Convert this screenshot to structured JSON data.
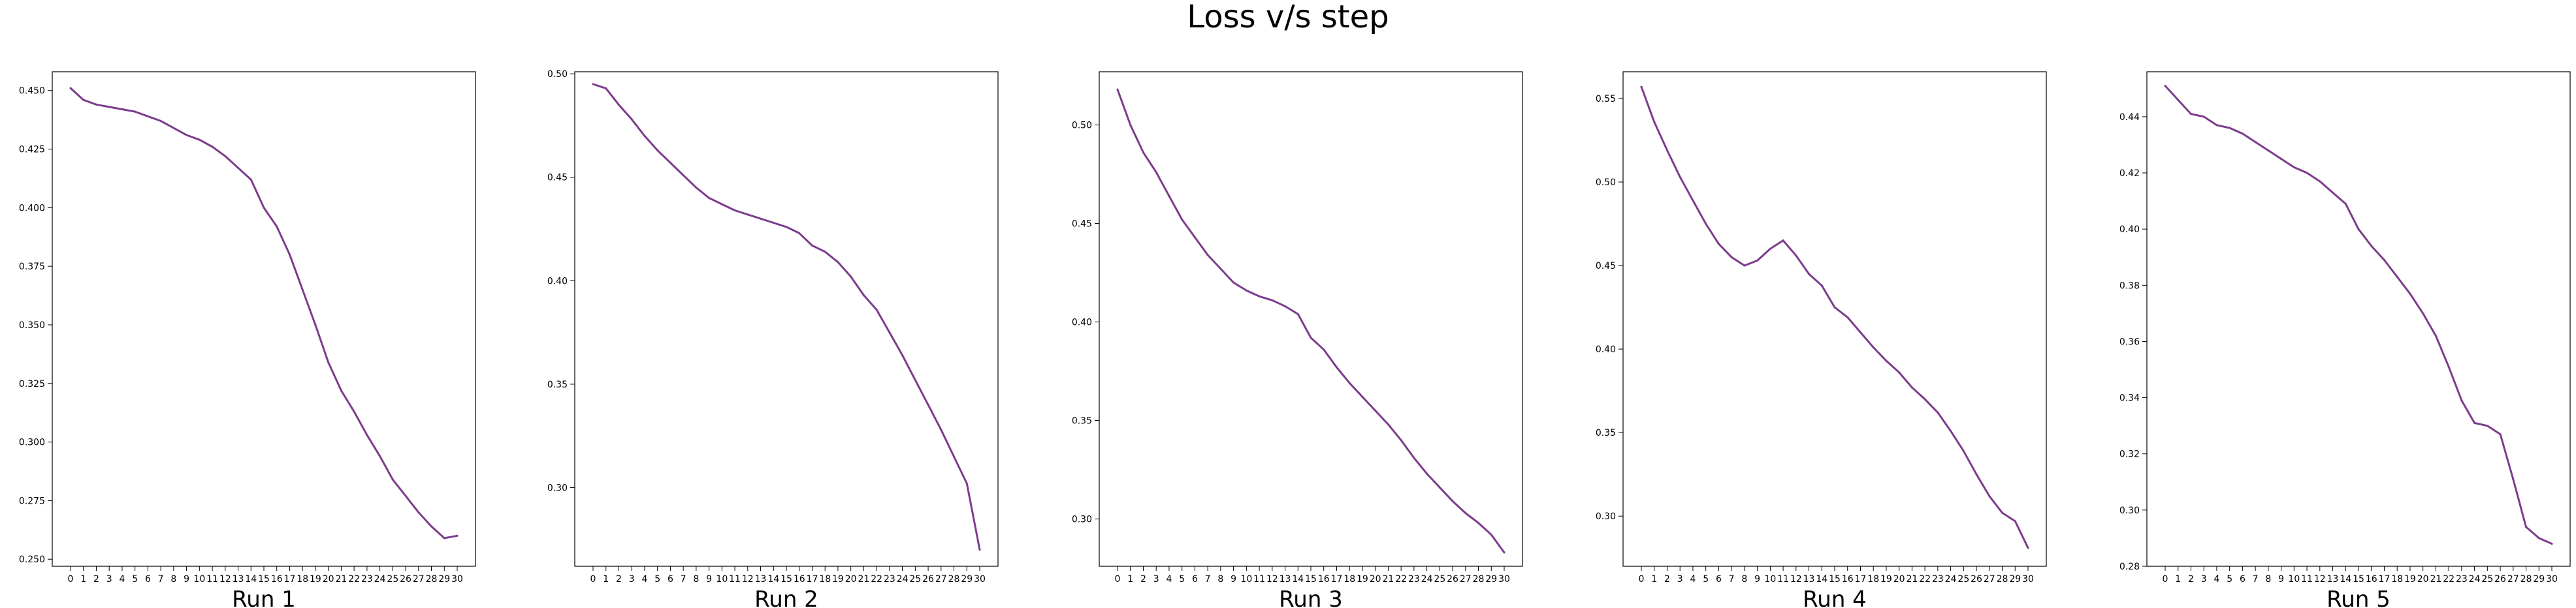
{
  "figure": {
    "title": "Loss v/s step",
    "line_color": "#7d3c8c"
  },
  "chart_data": [
    {
      "type": "line",
      "title": "",
      "xlabel": "Run 1",
      "ylabel": "",
      "x": [
        0,
        1,
        2,
        3,
        4,
        5,
        6,
        7,
        8,
        9,
        10,
        11,
        12,
        13,
        14,
        15,
        16,
        17,
        18,
        19,
        20,
        21,
        22,
        23,
        24,
        25,
        26,
        27,
        28,
        29,
        30
      ],
      "series": [
        {
          "values": [
            0.451,
            0.446,
            0.444,
            0.443,
            0.442,
            0.441,
            0.439,
            0.437,
            0.434,
            0.431,
            0.429,
            0.426,
            0.422,
            0.417,
            0.412,
            0.4,
            0.392,
            0.38,
            0.365,
            0.35,
            0.334,
            0.322,
            0.313,
            0.303,
            0.294,
            0.284,
            0.277,
            0.27,
            0.264,
            0.259,
            0.26
          ]
        }
      ],
      "ylim": [
        0.247,
        0.458
      ],
      "yticks": [
        0.25,
        0.275,
        0.3,
        0.325,
        0.35,
        0.375,
        0.4,
        0.425,
        0.45
      ],
      "ytick_labels": [
        "0.250",
        "0.275",
        "0.300",
        "0.325",
        "0.350",
        "0.375",
        "0.400",
        "0.425",
        "0.450"
      ],
      "grid": false,
      "legend": "none"
    },
    {
      "type": "line",
      "title": "",
      "xlabel": "Run 2",
      "ylabel": "",
      "x": [
        0,
        1,
        2,
        3,
        4,
        5,
        6,
        7,
        8,
        9,
        10,
        11,
        12,
        13,
        14,
        15,
        16,
        17,
        18,
        19,
        20,
        21,
        22,
        23,
        24,
        25,
        26,
        27,
        28,
        29,
        30
      ],
      "series": [
        {
          "values": [
            0.495,
            0.493,
            0.485,
            0.478,
            0.47,
            0.463,
            0.457,
            0.451,
            0.445,
            0.44,
            0.437,
            0.434,
            0.432,
            0.43,
            0.428,
            0.426,
            0.423,
            0.417,
            0.414,
            0.409,
            0.402,
            0.393,
            0.386,
            0.375,
            0.364,
            0.352,
            0.34,
            0.328,
            0.315,
            0.302,
            0.27
          ]
        }
      ],
      "ylim": [
        0.262,
        0.501
      ],
      "yticks": [
        0.3,
        0.35,
        0.4,
        0.45,
        0.5
      ],
      "ytick_labels": [
        "0.30",
        "0.35",
        "0.40",
        "0.45",
        "0.50"
      ],
      "grid": false,
      "legend": "none"
    },
    {
      "type": "line",
      "title": "",
      "xlabel": "Run 3",
      "ylabel": "",
      "x": [
        0,
        1,
        2,
        3,
        4,
        5,
        6,
        7,
        8,
        9,
        10,
        11,
        12,
        13,
        14,
        15,
        16,
        17,
        18,
        19,
        20,
        21,
        22,
        23,
        24,
        25,
        26,
        27,
        28,
        29,
        30
      ],
      "series": [
        {
          "values": [
            0.518,
            0.5,
            0.486,
            0.476,
            0.464,
            0.452,
            0.443,
            0.434,
            0.427,
            0.42,
            0.416,
            0.413,
            0.411,
            0.408,
            0.404,
            0.392,
            0.386,
            0.377,
            0.369,
            0.362,
            0.355,
            0.348,
            0.34,
            0.331,
            0.323,
            0.316,
            0.309,
            0.303,
            0.298,
            0.292,
            0.283
          ]
        }
      ],
      "ylim": [
        0.276,
        0.527
      ],
      "yticks": [
        0.3,
        0.35,
        0.4,
        0.45,
        0.5
      ],
      "ytick_labels": [
        "0.30",
        "0.35",
        "0.40",
        "0.45",
        "0.50"
      ],
      "grid": false,
      "legend": "none"
    },
    {
      "type": "line",
      "title": "",
      "xlabel": "Run 4",
      "ylabel": "",
      "x": [
        0,
        1,
        2,
        3,
        4,
        5,
        6,
        7,
        8,
        9,
        10,
        11,
        12,
        13,
        14,
        15,
        16,
        17,
        18,
        19,
        20,
        21,
        22,
        23,
        24,
        25,
        26,
        27,
        28,
        29,
        30
      ],
      "series": [
        {
          "values": [
            0.557,
            0.536,
            0.519,
            0.503,
            0.489,
            0.475,
            0.463,
            0.455,
            0.45,
            0.453,
            0.46,
            0.465,
            0.456,
            0.445,
            0.438,
            0.425,
            0.419,
            0.41,
            0.401,
            0.393,
            0.386,
            0.377,
            0.37,
            0.362,
            0.351,
            0.339,
            0.325,
            0.312,
            0.302,
            0.297,
            0.281
          ]
        }
      ],
      "ylim": [
        0.27,
        0.566
      ],
      "yticks": [
        0.3,
        0.35,
        0.4,
        0.45,
        0.5,
        0.55
      ],
      "ytick_labels": [
        "0.30",
        "0.35",
        "0.40",
        "0.45",
        "0.50",
        "0.55"
      ],
      "grid": false,
      "legend": "none"
    },
    {
      "type": "line",
      "title": "",
      "xlabel": "Run 5",
      "ylabel": "",
      "x": [
        0,
        1,
        2,
        3,
        4,
        5,
        6,
        7,
        8,
        9,
        10,
        11,
        12,
        13,
        14,
        15,
        16,
        17,
        18,
        19,
        20,
        21,
        22,
        23,
        24,
        25,
        26,
        27,
        28,
        29,
        30
      ],
      "series": [
        {
          "values": [
            0.451,
            0.446,
            0.441,
            0.44,
            0.437,
            0.436,
            0.434,
            0.431,
            0.428,
            0.425,
            0.422,
            0.42,
            0.417,
            0.413,
            0.409,
            0.4,
            0.394,
            0.389,
            0.383,
            0.377,
            0.37,
            0.362,
            0.351,
            0.339,
            0.331,
            0.33,
            0.327,
            0.311,
            0.294,
            0.29,
            0.288
          ]
        }
      ],
      "ylim": [
        0.28,
        0.456
      ],
      "yticks": [
        0.28,
        0.3,
        0.32,
        0.34,
        0.36,
        0.38,
        0.4,
        0.42,
        0.44
      ],
      "ytick_labels": [
        "0.28",
        "0.30",
        "0.32",
        "0.34",
        "0.36",
        "0.38",
        "0.40",
        "0.42",
        "0.44"
      ],
      "grid": false,
      "legend": "none"
    }
  ]
}
